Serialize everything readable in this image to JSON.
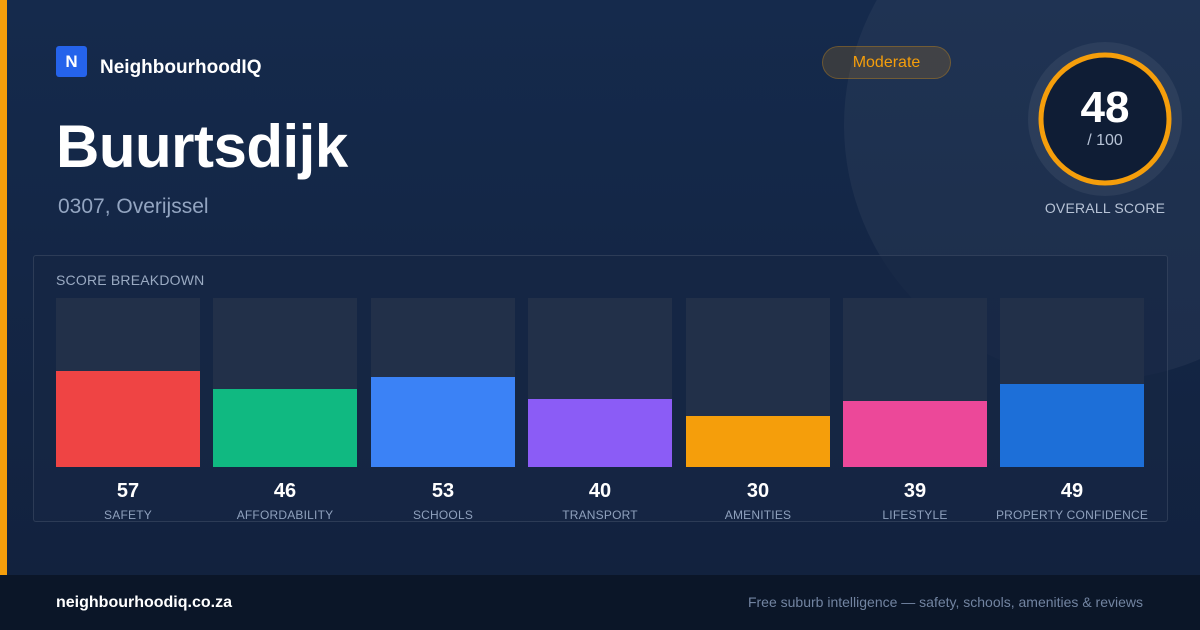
{
  "brand": {
    "logo_letter": "N",
    "name": "NeighbourhoodIQ"
  },
  "suburb": {
    "name": "Buurtsdijk",
    "location": "0307, Overijssel"
  },
  "rating": {
    "label": "Moderate",
    "color": "#f59e0b"
  },
  "overall_score": {
    "value": 48,
    "value_text": "48",
    "max_text": "/ 100",
    "label": "OVERALL SCORE",
    "fraction": 0.48
  },
  "breakdown": {
    "heading": "SCORE BREAKDOWN",
    "categories": [
      {
        "label": "SAFETY",
        "score": 57,
        "score_text": "57",
        "color": "#ef4444"
      },
      {
        "label": "AFFORDABILITY",
        "score": 46,
        "score_text": "46",
        "color": "#10b981"
      },
      {
        "label": "SCHOOLS",
        "score": 53,
        "score_text": "53",
        "color": "#3b82f6"
      },
      {
        "label": "TRANSPORT",
        "score": 40,
        "score_text": "40",
        "color": "#8b5cf6"
      },
      {
        "label": "AMENITIES",
        "score": 30,
        "score_text": "30",
        "color": "#f59e0b"
      },
      {
        "label": "LIFESTYLE",
        "score": 39,
        "score_text": "39",
        "color": "#ec4899"
      },
      {
        "label": "PROPERTY CONFIDENCE",
        "score": 49,
        "score_text": "49",
        "color": "#1d6fd8"
      }
    ]
  },
  "footer": {
    "domain": "neighbourhoodiq.co.za",
    "tagline": "Free suburb intelligence — safety, schools, amenities & reviews"
  },
  "chart_data": {
    "type": "bar",
    "title": "SCORE BREAKDOWN",
    "categories": [
      "SAFETY",
      "AFFORDABILITY",
      "SCHOOLS",
      "TRANSPORT",
      "AMENITIES",
      "LIFESTYLE",
      "PROPERTY CONFIDENCE"
    ],
    "values": [
      57,
      46,
      53,
      40,
      30,
      39,
      49
    ],
    "xlabel": "",
    "ylabel": "",
    "ylim": [
      0,
      100
    ],
    "grid": false,
    "legend": "none"
  }
}
